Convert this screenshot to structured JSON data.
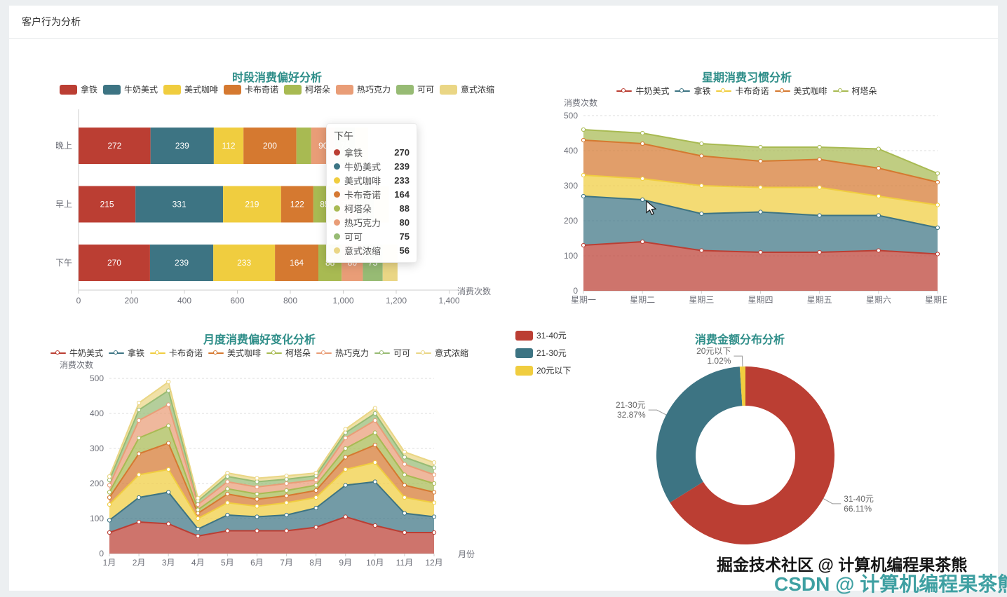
{
  "page": {
    "title": "客户行为分析"
  },
  "theme": {
    "title_color": "#2f8e89",
    "axis_label_color": "#6e7079",
    "legend_text_color": "#333333",
    "grid_line_color": "#dddddd",
    "axis_line_color": "#cccccc"
  },
  "watermarks": [
    {
      "text": "掘金技术社区 @ 计算机编程果茶熊",
      "color": "#151515"
    },
    {
      "text": "CSDN @ 计算机编程果茶熊",
      "color": "#3fa0a2"
    }
  ],
  "chart_data": [
    {
      "id": "time-period",
      "type": "bar",
      "orientation": "horizontal",
      "stacked": true,
      "title": "时段消费偏好分析",
      "xlabel": "消费次数",
      "xlim": [
        0,
        1400
      ],
      "x_ticks": [
        "0",
        "200",
        "400",
        "600",
        "800",
        "1,000",
        "1,200",
        "1,400"
      ],
      "categories": [
        "下午",
        "早上",
        "晚上"
      ],
      "series": [
        {
          "name": "拿铁",
          "color": "#bb3e33",
          "values": [
            270,
            215,
            272
          ]
        },
        {
          "name": "牛奶美式",
          "color": "#3d7483",
          "values": [
            239,
            331,
            239
          ]
        },
        {
          "name": "美式咖啡",
          "color": "#f0cd3f",
          "values": [
            233,
            219,
            112
          ]
        },
        {
          "name": "卡布奇诺",
          "color": "#d57930",
          "values": [
            164,
            122,
            200
          ]
        },
        {
          "name": "柯塔朵",
          "color": "#a8ba52",
          "values": [
            88,
            85,
            56
          ]
        },
        {
          "name": "热巧克力",
          "color": "#e99d77",
          "values": [
            80,
            75,
            90
          ]
        },
        {
          "name": "可可",
          "color": "#97bb74",
          "values": [
            75,
            70,
            75
          ]
        },
        {
          "name": "意式浓缩",
          "color": "#ead685",
          "values": [
            56,
            55,
            50
          ]
        }
      ],
      "tooltip": {
        "title": "下午",
        "rows": [
          {
            "name": "拿铁",
            "value": "270"
          },
          {
            "name": "牛奶美式",
            "value": "239"
          },
          {
            "name": "美式咖啡",
            "value": "233"
          },
          {
            "name": "卡布奇诺",
            "value": "164"
          },
          {
            "name": "柯塔朵",
            "value": "88"
          },
          {
            "name": "热巧克力",
            "value": "80"
          },
          {
            "name": "可可",
            "value": "75"
          },
          {
            "name": "意式浓缩",
            "value": "56"
          }
        ]
      }
    },
    {
      "id": "weekday",
      "type": "area",
      "stacked": true,
      "title": "星期消费习惯分析",
      "ylabel": "消费次数",
      "ylim": [
        0,
        500
      ],
      "y_ticks": [
        "0",
        "100",
        "200",
        "300",
        "400",
        "500"
      ],
      "x": [
        "星期一",
        "星期二",
        "星期三",
        "星期四",
        "星期五",
        "星期六",
        "星期日"
      ],
      "series": [
        {
          "name": "牛奶美式",
          "color": "#bb3e33",
          "values": [
            130,
            140,
            115,
            110,
            110,
            115,
            105
          ]
        },
        {
          "name": "拿铁",
          "color": "#3d7483",
          "values": [
            140,
            120,
            105,
            115,
            105,
            100,
            75
          ]
        },
        {
          "name": "卡布奇诺",
          "color": "#f0cd3f",
          "values": [
            60,
            60,
            80,
            70,
            80,
            55,
            65
          ]
        },
        {
          "name": "美式咖啡",
          "color": "#d57930",
          "values": [
            100,
            100,
            85,
            75,
            80,
            80,
            65
          ]
        },
        {
          "name": "柯塔朵",
          "color": "#a8ba52",
          "values": [
            30,
            30,
            35,
            40,
            35,
            55,
            25
          ]
        }
      ]
    },
    {
      "id": "monthly",
      "type": "area",
      "stacked": true,
      "title": "月度消费偏好变化分析",
      "ylabel": "消费次数",
      "xlabel": "月份",
      "ylim": [
        0,
        500
      ],
      "y_ticks": [
        "0",
        "100",
        "200",
        "300",
        "400",
        "500"
      ],
      "x": [
        "1月",
        "2月",
        "3月",
        "4月",
        "5月",
        "6月",
        "7月",
        "8月",
        "9月",
        "10月",
        "11月",
        "12月"
      ],
      "series": [
        {
          "name": "牛奶美式",
          "color": "#bb3e33",
          "values": [
            60,
            90,
            85,
            50,
            65,
            65,
            65,
            75,
            105,
            80,
            60,
            60
          ]
        },
        {
          "name": "拿铁",
          "color": "#3d7483",
          "values": [
            35,
            70,
            90,
            20,
            45,
            40,
            45,
            55,
            90,
            125,
            55,
            45
          ]
        },
        {
          "name": "卡布奇诺",
          "color": "#f0cd3f",
          "values": [
            45,
            65,
            65,
            30,
            35,
            30,
            35,
            30,
            45,
            55,
            45,
            40
          ]
        },
        {
          "name": "美式咖啡",
          "color": "#d57930",
          "values": [
            20,
            60,
            75,
            15,
            25,
            20,
            20,
            20,
            35,
            50,
            35,
            30
          ]
        },
        {
          "name": "柯塔朵",
          "color": "#a8ba52",
          "values": [
            15,
            45,
            50,
            10,
            15,
            15,
            15,
            15,
            25,
            35,
            30,
            25
          ]
        },
        {
          "name": "热巧克力",
          "color": "#e99d77",
          "values": [
            20,
            50,
            60,
            15,
            20,
            20,
            20,
            15,
            30,
            35,
            30,
            25
          ]
        },
        {
          "name": "可可",
          "color": "#97bb74",
          "values": [
            15,
            30,
            40,
            10,
            15,
            15,
            12,
            12,
            15,
            20,
            20,
            20
          ]
        },
        {
          "name": "意式浓缩",
          "color": "#ead685",
          "values": [
            10,
            20,
            25,
            8,
            10,
            10,
            10,
            8,
            10,
            15,
            15,
            15
          ]
        }
      ]
    },
    {
      "id": "amount",
      "type": "pie",
      "donut": true,
      "title": "消费金额分布分析",
      "slices": [
        {
          "name": "31-40元",
          "pct": 66.11,
          "pct_label": "66.11%",
          "color": "#bb3e33"
        },
        {
          "name": "21-30元",
          "pct": 32.87,
          "pct_label": "32.87%",
          "color": "#3d7483"
        },
        {
          "name": "20元以下",
          "pct": 1.02,
          "pct_label": "1.02%",
          "color": "#f0cd3f"
        }
      ]
    }
  ]
}
